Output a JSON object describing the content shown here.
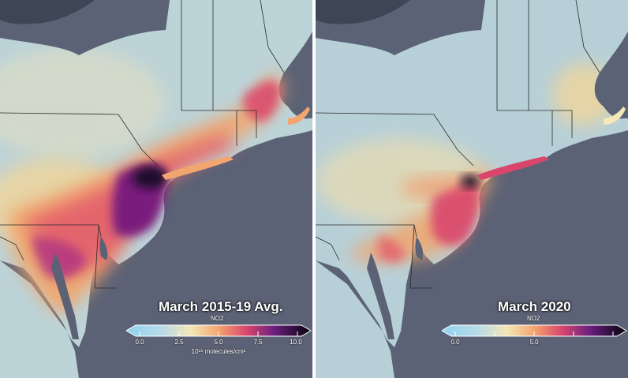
{
  "panels": [
    {
      "title": "March 2015-19 Avg.",
      "variable": "NO2",
      "colorbar": {
        "min": 0.0,
        "max": 10.0,
        "ticks": [
          "0.0",
          "2.5",
          "5.0",
          "7.5",
          "10.0"
        ],
        "unit": "10¹⁵ molecules/cm²"
      }
    },
    {
      "title": "March 2020",
      "variable": "NO2",
      "colorbar": {
        "min": 0.0,
        "max": 10.0,
        "ticks": [
          "0.0",
          "5.0"
        ]
      }
    }
  ],
  "colors": {
    "ocean": "#5b6275",
    "land_low": "#b9d0d6",
    "land_mid": "#f1d9a1",
    "high": "#ef7b5a",
    "very_high": "#7a1e7d",
    "max": "#110722"
  }
}
